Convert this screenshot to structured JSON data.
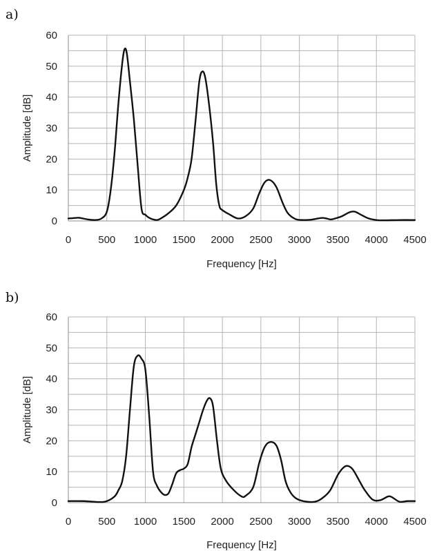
{
  "chart_data": [
    {
      "panel_label": "a)",
      "type": "line",
      "xlabel": "Frequency [Hz]",
      "ylabel": "Amplitude [dB]",
      "xlim": [
        0,
        4500
      ],
      "ylim": [
        0,
        60
      ],
      "x_ticks": [
        "0",
        "500",
        "1000",
        "1500",
        "2000",
        "2500",
        "3000",
        "3500",
        "4000",
        "4500"
      ],
      "y_ticks": [
        "0",
        "10",
        "20",
        "30",
        "40",
        "50",
        "60"
      ],
      "grid": true,
      "series": [
        {
          "points": [
            [
              0,
              0.8
            ],
            [
              100,
              1.0
            ],
            [
              150,
              1.0
            ],
            [
              250,
              0.5
            ],
            [
              350,
              0.3
            ],
            [
              430,
              0.8
            ],
            [
              500,
              3
            ],
            [
              550,
              10
            ],
            [
              600,
              22
            ],
            [
              650,
              38
            ],
            [
              700,
              51
            ],
            [
              730,
              55.5
            ],
            [
              760,
              54
            ],
            [
              800,
              45
            ],
            [
              850,
              33
            ],
            [
              900,
              18
            ],
            [
              950,
              4
            ],
            [
              1000,
              2
            ],
            [
              1050,
              1
            ],
            [
              1100,
              0.5
            ],
            [
              1150,
              0.3
            ],
            [
              1200,
              0.8
            ],
            [
              1300,
              2.5
            ],
            [
              1400,
              5
            ],
            [
              1500,
              10
            ],
            [
              1550,
              14
            ],
            [
              1600,
              20
            ],
            [
              1650,
              32
            ],
            [
              1700,
              45
            ],
            [
              1740,
              48.3
            ],
            [
              1780,
              46
            ],
            [
              1830,
              37
            ],
            [
              1880,
              25
            ],
            [
              1920,
              12
            ],
            [
              1960,
              5
            ],
            [
              2000,
              3.5
            ],
            [
              2100,
              2
            ],
            [
              2200,
              0.8
            ],
            [
              2300,
              1.5
            ],
            [
              2400,
              4
            ],
            [
              2480,
              9
            ],
            [
              2550,
              12.5
            ],
            [
              2620,
              13.2
            ],
            [
              2700,
              11
            ],
            [
              2780,
              6
            ],
            [
              2850,
              2.5
            ],
            [
              2950,
              0.6
            ],
            [
              3050,
              0.3
            ],
            [
              3150,
              0.4
            ],
            [
              3300,
              1.0
            ],
            [
              3400,
              0.5
            ],
            [
              3450,
              0.7
            ],
            [
              3550,
              1.5
            ],
            [
              3650,
              2.8
            ],
            [
              3720,
              3.0
            ],
            [
              3800,
              2.0
            ],
            [
              3900,
              0.8
            ],
            [
              4000,
              0.3
            ],
            [
              4100,
              0.2
            ],
            [
              4300,
              0.3
            ],
            [
              4500,
              0.3
            ]
          ]
        }
      ]
    },
    {
      "panel_label": "b)",
      "type": "line",
      "xlabel": "Frequency [Hz]",
      "ylabel": "Amplitude [dB]",
      "xlim": [
        0,
        4500
      ],
      "ylim": [
        0,
        60
      ],
      "x_ticks": [
        "0",
        "500",
        "1000",
        "1500",
        "2000",
        "2500",
        "3000",
        "3500",
        "4000",
        "4500"
      ],
      "y_ticks": [
        "0",
        "10",
        "20",
        "30",
        "40",
        "50",
        "60"
      ],
      "grid": true,
      "series": [
        {
          "points": [
            [
              0,
              0.5
            ],
            [
              200,
              0.5
            ],
            [
              400,
              0.2
            ],
            [
              500,
              0.5
            ],
            [
              600,
              2
            ],
            [
              650,
              4
            ],
            [
              700,
              7
            ],
            [
              750,
              15
            ],
            [
              800,
              30
            ],
            [
              850,
              44
            ],
            [
              900,
              47.5
            ],
            [
              950,
              46.5
            ],
            [
              1000,
              43
            ],
            [
              1050,
              28
            ],
            [
              1100,
              10
            ],
            [
              1150,
              5.5
            ],
            [
              1200,
              3.5
            ],
            [
              1250,
              2.5
            ],
            [
              1300,
              3
            ],
            [
              1350,
              6
            ],
            [
              1400,
              9.5
            ],
            [
              1450,
              10.5
            ],
            [
              1500,
              11
            ],
            [
              1550,
              12.5
            ],
            [
              1600,
              18
            ],
            [
              1650,
              22
            ],
            [
              1700,
              26
            ],
            [
              1750,
              30
            ],
            [
              1800,
              33
            ],
            [
              1840,
              33.7
            ],
            [
              1880,
              31
            ],
            [
              1930,
              20
            ],
            [
              1980,
              11
            ],
            [
              2050,
              7
            ],
            [
              2150,
              4
            ],
            [
              2250,
              2
            ],
            [
              2300,
              2.2
            ],
            [
              2400,
              5
            ],
            [
              2480,
              13
            ],
            [
              2550,
              18
            ],
            [
              2620,
              19.6
            ],
            [
              2700,
              18.5
            ],
            [
              2760,
              14
            ],
            [
              2820,
              7
            ],
            [
              2880,
              3.5
            ],
            [
              2950,
              1.5
            ],
            [
              3050,
              0.5
            ],
            [
              3200,
              0.3
            ],
            [
              3300,
              1.5
            ],
            [
              3400,
              4
            ],
            [
              3500,
              9
            ],
            [
              3580,
              11.5
            ],
            [
              3640,
              11.8
            ],
            [
              3700,
              10.5
            ],
            [
              3780,
              7
            ],
            [
              3850,
              4
            ],
            [
              3950,
              1
            ],
            [
              4050,
              0.8
            ],
            [
              4150,
              2
            ],
            [
              4200,
              1.8
            ],
            [
              4300,
              0.3
            ],
            [
              4400,
              0.5
            ],
            [
              4500,
              0.5
            ]
          ]
        }
      ]
    }
  ]
}
